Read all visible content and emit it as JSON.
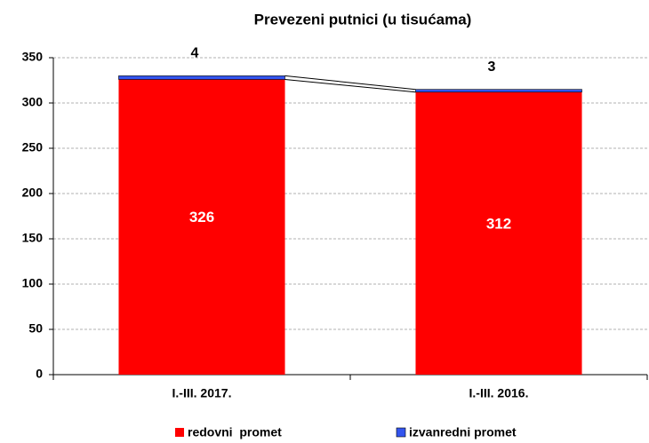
{
  "chart_data": {
    "type": "stacked_bar",
    "title": "Prevezeni putnici (u tisućama)",
    "categories": [
      "I.-III. 2017.",
      "I.-III. 2016."
    ],
    "series": [
      {
        "name": "redovni  promet",
        "color": "#ff0000",
        "values": [
          326,
          312
        ]
      },
      {
        "name": "izvanredni promet",
        "color": "#3355ee",
        "values": [
          4,
          3
        ]
      }
    ],
    "ylim": [
      0,
      350
    ],
    "yticks": [
      0,
      50,
      100,
      150,
      200,
      250,
      300,
      350
    ],
    "grid": true,
    "legend": "bottom"
  }
}
